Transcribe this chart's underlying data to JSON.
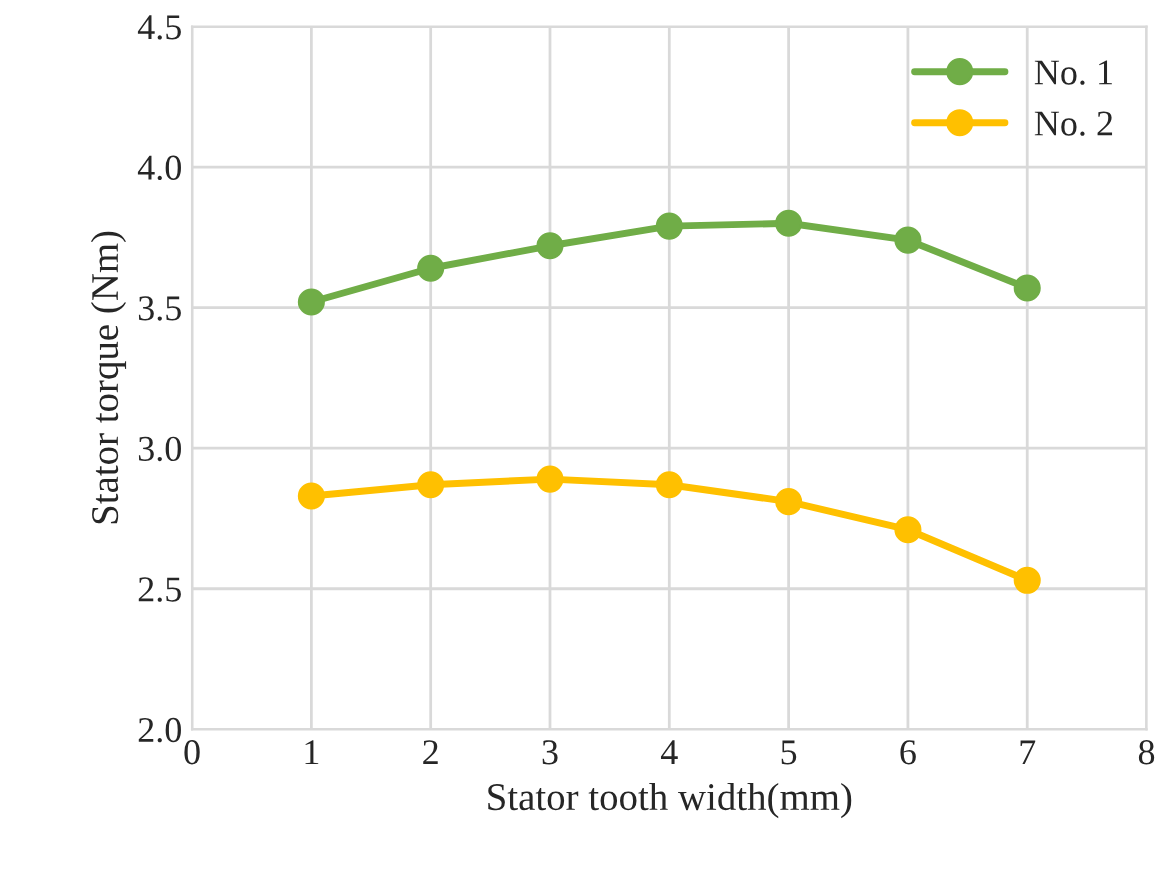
{
  "chart_data": {
    "type": "line",
    "xlabel": "Stator tooth width(mm)",
    "ylabel": "Stator torque (Nm)",
    "x": [
      1,
      2,
      3,
      4,
      5,
      6,
      7
    ],
    "series": [
      {
        "name": "No. 1",
        "color": "#70ad47",
        "values": [
          3.52,
          3.64,
          3.72,
          3.79,
          3.8,
          3.74,
          3.57
        ]
      },
      {
        "name": "No. 2",
        "color": "#ffc000",
        "values": [
          2.83,
          2.87,
          2.89,
          2.87,
          2.81,
          2.71,
          2.53
        ]
      }
    ],
    "xlim": [
      0,
      8
    ],
    "xticks": [
      0,
      1,
      2,
      3,
      4,
      5,
      6,
      7,
      8
    ],
    "ylim": [
      2.0,
      4.5
    ],
    "yticks": [
      {
        "value": 2.0,
        "label": "2.0"
      },
      {
        "value": 2.5,
        "label": "2.5"
      },
      {
        "value": 3.0,
        "label": "3.0"
      },
      {
        "value": 3.5,
        "label": "3.5"
      },
      {
        "value": 4.0,
        "label": "4.0"
      },
      {
        "value": 4.5,
        "label": "4.5"
      }
    ],
    "grid": true,
    "legend": "top right",
    "marker": "circle",
    "line_style": "solid"
  }
}
